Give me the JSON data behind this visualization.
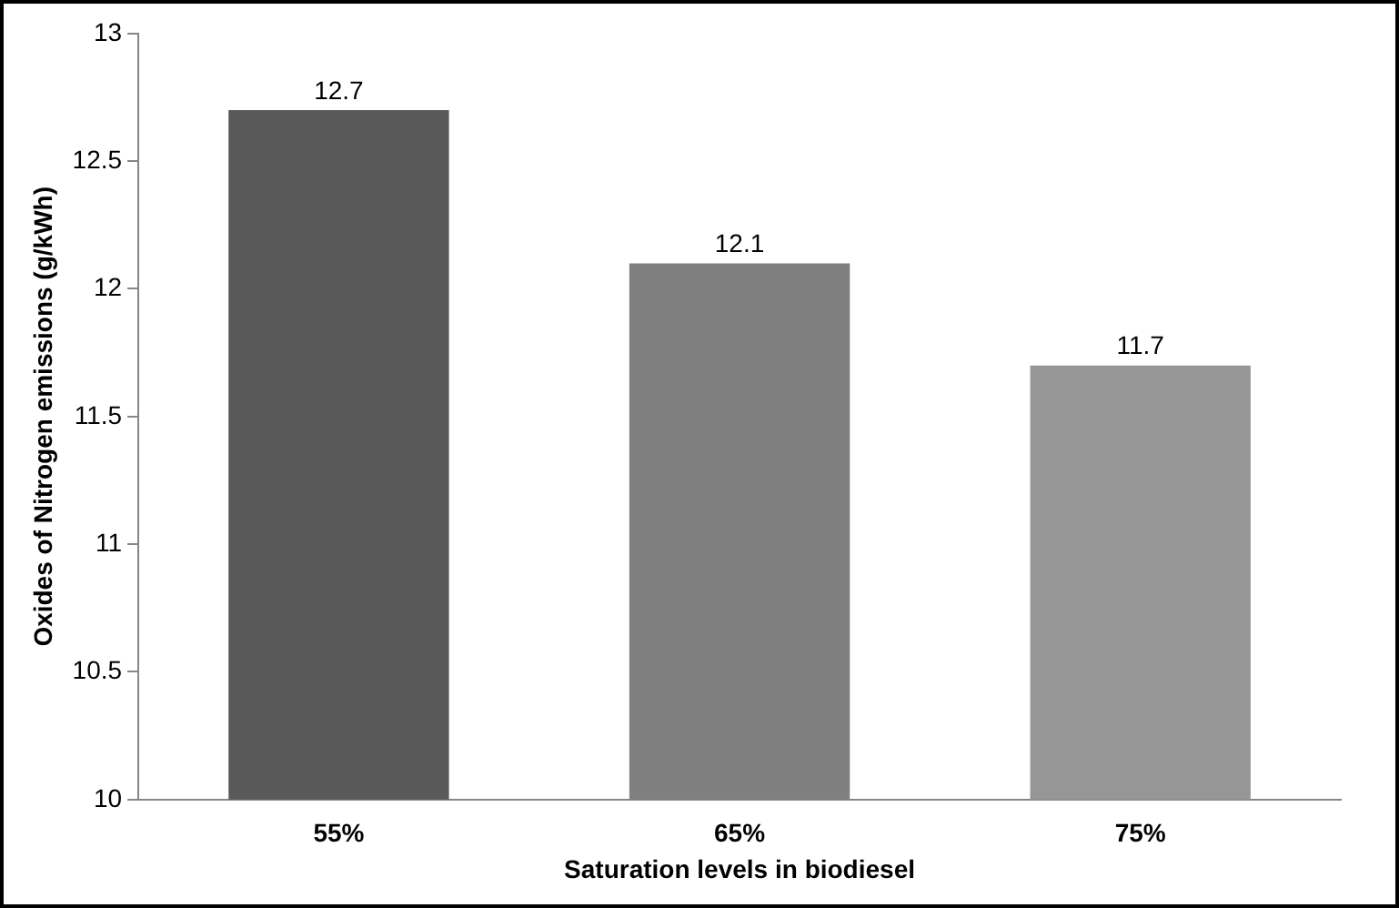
{
  "chart_data": {
    "type": "bar",
    "xlabel": "Saturation levels in biodiesel",
    "ylabel": "Oxides of Nitrogen emissions (g/kWh)",
    "categories": [
      "55%",
      "65%",
      "75%"
    ],
    "values": [
      12.7,
      12.1,
      11.7
    ],
    "colors": [
      "#595959",
      "#7f7f7f",
      "#969696"
    ],
    "ylim": [
      10,
      13
    ],
    "yticks": [
      10,
      10.5,
      11,
      11.5,
      12,
      12.5,
      13
    ],
    "grid": false,
    "data_labels": true
  }
}
